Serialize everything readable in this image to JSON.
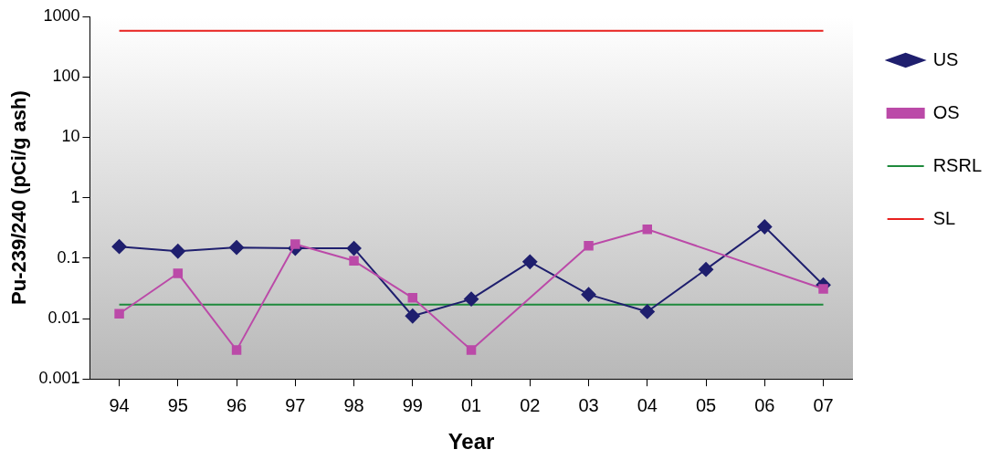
{
  "chart_data": {
    "type": "line",
    "xlabel": "Year",
    "ylabel": "Pu-239/240 (pCi/g ash)",
    "categories": [
      "94",
      "95",
      "96",
      "97",
      "98",
      "99",
      "01",
      "02",
      "03",
      "04",
      "05",
      "06",
      "07"
    ],
    "log": "y",
    "ylim": [
      0.001,
      1000
    ],
    "yticks": [
      0.001,
      0.01,
      0.1,
      1,
      10,
      100,
      1000
    ],
    "grid": false,
    "legend": "right",
    "line_style": "solid",
    "series": [
      {
        "name": "US",
        "color": "#1f1f6e",
        "marker": "diamond",
        "values": [
          0.155,
          0.13,
          0.15,
          0.145,
          0.145,
          0.011,
          0.021,
          0.087,
          0.025,
          0.013,
          0.065,
          0.33,
          0.036
        ]
      },
      {
        "name": "OS",
        "color": "#bb4aa8",
        "marker": "square",
        "values": [
          0.012,
          0.056,
          0.003,
          0.17,
          0.09,
          0.022,
          0.003,
          null,
          0.16,
          0.3,
          null,
          null,
          0.031
        ]
      },
      {
        "name": "RSRL",
        "color": "#1e8a3c",
        "marker": "none",
        "values": [
          0.017,
          0.017,
          0.017,
          0.017,
          0.017,
          0.017,
          0.017,
          0.017,
          0.017,
          0.017,
          0.017,
          0.017,
          0.017
        ]
      },
      {
        "name": "SL",
        "color": "#e8201e",
        "marker": "none",
        "values": [
          580,
          580,
          580,
          580,
          580,
          580,
          580,
          580,
          580,
          580,
          580,
          580,
          580
        ]
      }
    ]
  }
}
